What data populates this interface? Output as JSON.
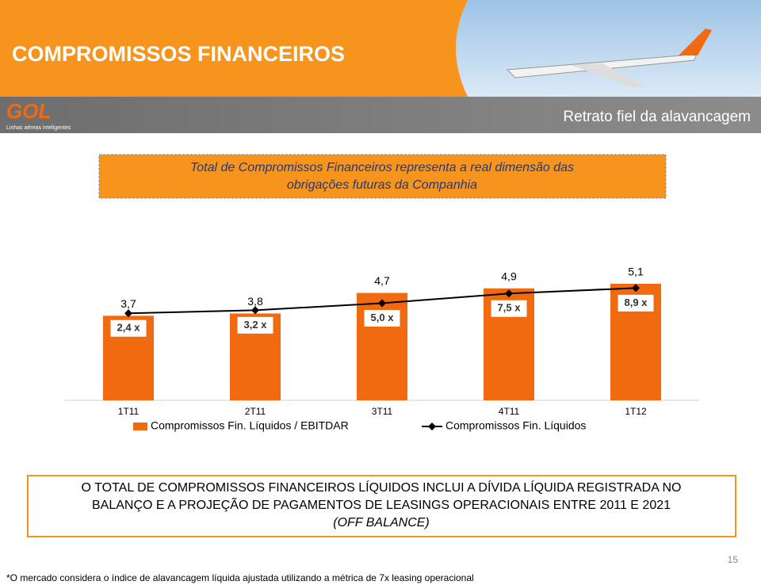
{
  "header": {
    "title": "COMPROMISSOS FINANCEIROS",
    "subtitle": "Retrato fiel da alavancagem"
  },
  "logo": {
    "name": "GOL",
    "tagline": "Linhas aéreas inteligentes"
  },
  "callout": {
    "lines": [
      "Total de Compromissos Financeiros representa a real dimensão das",
      "obrigações futuras da Companhia"
    ]
  },
  "chart_data": {
    "type": "bar",
    "categories": [
      "1T11",
      "2T11",
      "3T11",
      "4T11",
      "1T12"
    ],
    "series": [
      {
        "name": "Compromissos Fin. Líquidos / EBITDAR",
        "color": "#f26a10",
        "values": [
          3.7,
          3.8,
          4.7,
          4.9,
          5.1
        ],
        "value_labels": [
          "3,7",
          "3,8",
          "4,7",
          "4,9",
          "5,1"
        ]
      },
      {
        "name": "Compromissos Fin. Líquidos",
        "type": "line",
        "axis": "y2",
        "color": "#000000",
        "values": [
          2.4,
          3.2,
          5.0,
          7.5,
          8.9
        ],
        "value_labels": [
          "2,4 x",
          "3,2 x",
          "5,0 x",
          "7,5 x",
          "8,9 x"
        ]
      }
    ],
    "ylim": [
      0,
      5.1
    ],
    "y2lim": [
      -20,
      10
    ]
  },
  "box": {
    "lines": [
      "O TOTAL DE COMPROMISSOS FINANCEIROS LÍQUIDOS INCLUI A DÍVIDA LÍQUIDA REGISTRADA NO",
      "BALANÇO E A PROJEÇÃO DE PAGAMENTOS DE LEASINGS OPERACIONAIS ENTRE 2011 E 2021",
      "(OFF BALANCE)"
    ]
  },
  "footnote": "*O mercado considera o índice de alavancagem líquida ajustada utilizando a métrica de 7x leasing operacional",
  "page_number": "15"
}
